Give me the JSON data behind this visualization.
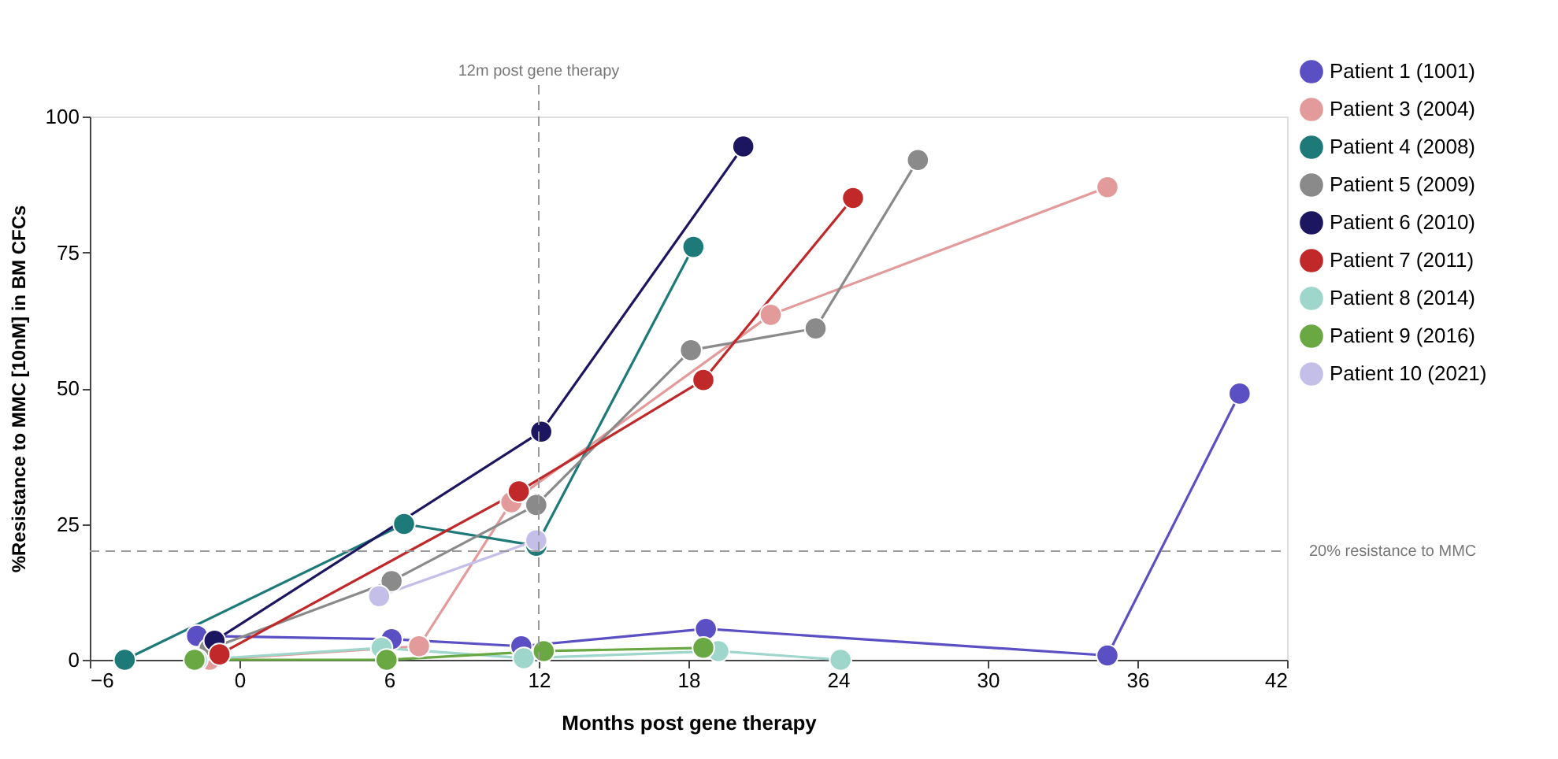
{
  "chart_data": {
    "type": "line",
    "xlabel": "Months post gene therapy",
    "ylabel": "%Resistance to MMC [10nM] in BM CFCs",
    "xlim": [
      -6,
      42
    ],
    "xticks": [
      -6,
      0,
      6,
      12,
      18,
      24,
      30,
      36,
      42
    ],
    "ylim": [
      0,
      100
    ],
    "yticks": [
      0,
      25,
      50,
      75,
      100
    ],
    "grid": false,
    "legend": "right",
    "marker": "circle",
    "line_style": "solid",
    "series": [
      {
        "name": "Patient 1 (1001)",
        "color": "#5b4fc4",
        "x": [
          -1.7,
          6.1,
          11.3,
          18.7,
          34.8,
          40.1
        ],
        "values": [
          4.4,
          3.8,
          2.5,
          5.7,
          0.8,
          49
        ]
      },
      {
        "name": "Patient 3 (2004)",
        "color": "#e39a9a",
        "x": [
          -1.2,
          7.2,
          10.9,
          21.3,
          34.8
        ],
        "values": [
          0,
          2.5,
          29,
          63.5,
          87
        ]
      },
      {
        "name": "Patient 4 (2008)",
        "color": "#1e7a78",
        "x": [
          -4.6,
          6.6,
          11.9,
          18.2
        ],
        "values": [
          0,
          25,
          21,
          76
        ]
      },
      {
        "name": "Patient 5 (2009)",
        "color": "#8a8a8a",
        "x": [
          -1.2,
          6.1,
          11.9,
          18.1,
          23.1,
          27.2
        ],
        "values": [
          2,
          14.5,
          28.5,
          57,
          61,
          92
        ]
      },
      {
        "name": "Patient 6 (2010)",
        "color": "#1c1660",
        "x": [
          -1,
          12.1,
          20.2
        ],
        "values": [
          3.5,
          42,
          94.5
        ]
      },
      {
        "name": "Patient 7 (2011)",
        "color": "#c0282a",
        "x": [
          -0.8,
          11.2,
          18.6,
          24.6
        ],
        "values": [
          1,
          31,
          51.5,
          85
        ]
      },
      {
        "name": "Patient 8 (2014)",
        "color": "#9ed6cc",
        "x": [
          -1.7,
          5.7,
          11.4,
          19.2,
          24.1
        ],
        "values": [
          0,
          2.2,
          0.3,
          1.6,
          0
        ]
      },
      {
        "name": "Patient 9 (2016)",
        "color": "#6aa844",
        "x": [
          -1.8,
          5.9,
          12.2,
          18.6
        ],
        "values": [
          0,
          0,
          1.6,
          2.2
        ]
      },
      {
        "name": "Patient 10 (2021)",
        "color": "#c4bfe8",
        "x": [
          5.6,
          11.9
        ],
        "values": [
          11.7,
          22
        ]
      }
    ],
    "ref_lines": [
      {
        "axis": "x",
        "value": 12,
        "label": "12m post gene therapy",
        "color": "#999999",
        "line_style": "dashed"
      },
      {
        "axis": "y",
        "value": 20,
        "label": "20% resistance to MMC",
        "color": "#999999",
        "line_style": "dashed"
      }
    ]
  }
}
